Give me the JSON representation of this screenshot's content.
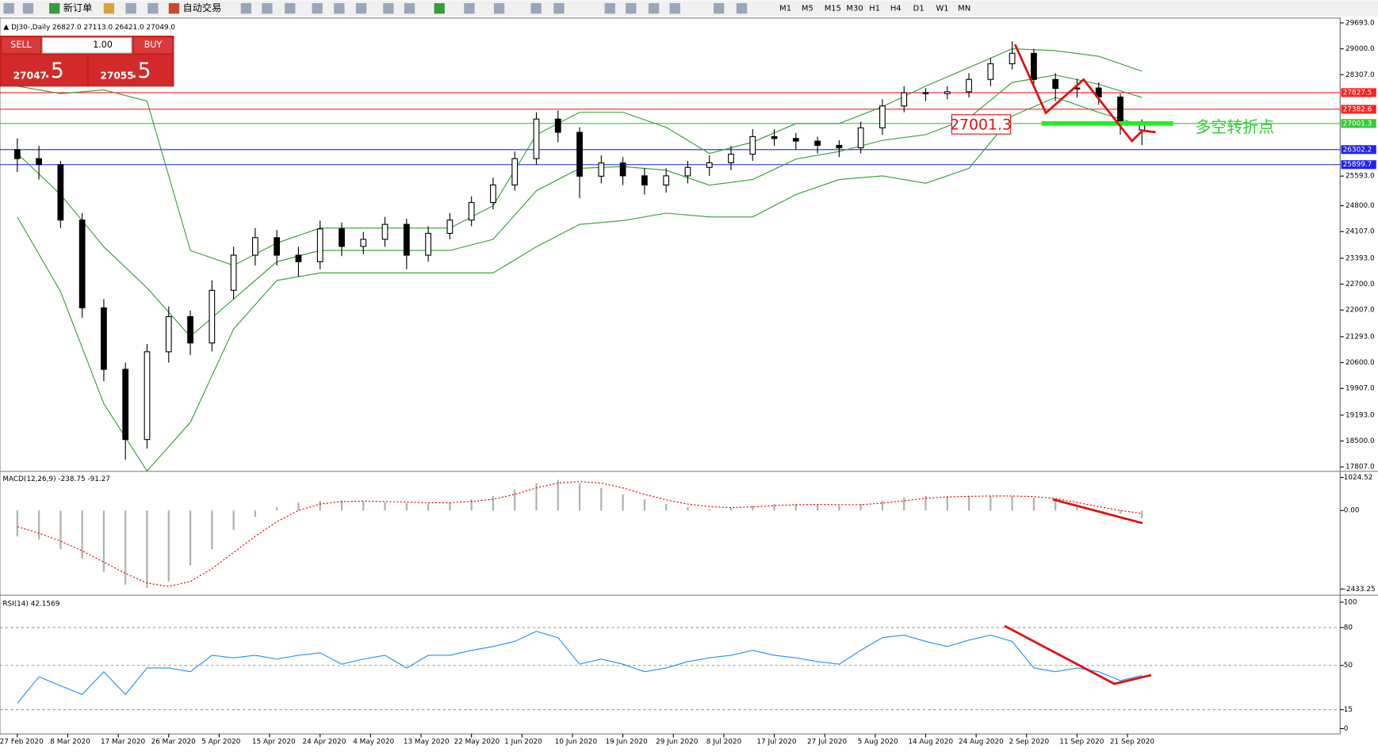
{
  "toolbar": {
    "new_order": "新订单",
    "auto_trading": "自动交易",
    "timeframes": [
      "M1",
      "M5",
      "M15",
      "M30",
      "H1",
      "H4",
      "D1",
      "W1",
      "MN"
    ]
  },
  "trade": {
    "sell": "SELL",
    "buy": "BUY",
    "lots": "1.00",
    "bid_main": "27047",
    "bid_tail": ".5",
    "ask_main": "27055",
    "ask_tail": ".5"
  },
  "chart_data": {
    "type": "candlestick",
    "title": "DJ30-,Daily",
    "ohlc_text": [
      "26827.0",
      "27113.0",
      "26421.0",
      "27049.0"
    ],
    "up_color": "#ffffff",
    "down_color": "#000000",
    "x": [
      0,
      3,
      6,
      9,
      12,
      15,
      18,
      21,
      24,
      27,
      30,
      33,
      36,
      39,
      42,
      45,
      48,
      51,
      54,
      57,
      60,
      63,
      66,
      69,
      72,
      75,
      78,
      81,
      84,
      87,
      90,
      93,
      96,
      99,
      102,
      105,
      108,
      111,
      114,
      117,
      120,
      123,
      126,
      129,
      132,
      135,
      138,
      141,
      144,
      147,
      150,
      153,
      156
    ],
    "open": [
      26300,
      26060,
      25900,
      24415,
      22065,
      20420,
      18540,
      20890,
      21830,
      21125,
      22535,
      23475,
      23945,
      23475,
      23300,
      24180,
      23710,
      23900,
      24300,
      23475,
      24060,
      24415,
      24885,
      25355,
      26060,
      27120,
      26765,
      25590,
      25945,
      25600,
      25355,
      25600,
      25825,
      25950,
      26180,
      26650,
      26600,
      26530,
      26415,
      26350,
      26885,
      27470,
      27825,
      27800,
      27850,
      28180,
      28600,
      28880,
      28180,
      27940,
      27950,
      27710,
      26827
    ],
    "high": [
      26600,
      26400,
      26000,
      24600,
      22300,
      20600,
      21100,
      22100,
      22000,
      22800,
      23700,
      24200,
      24150,
      23700,
      24400,
      24350,
      24100,
      24500,
      24450,
      24250,
      24600,
      25050,
      25550,
      26250,
      27300,
      27350,
      26900,
      26150,
      26100,
      25800,
      25800,
      26000,
      26150,
      26400,
      26850,
      26850,
      26750,
      26650,
      26550,
      27050,
      27650,
      28000,
      27950,
      28000,
      28350,
      28750,
      29200,
      29000,
      28350,
      28200,
      28100,
      27800,
      27113
    ],
    "low": [
      25700,
      25500,
      24200,
      21800,
      20100,
      18000,
      18300,
      20600,
      20800,
      20900,
      22300,
      23200,
      23200,
      22900,
      23100,
      23450,
      23500,
      23700,
      23100,
      23300,
      23900,
      24250,
      24700,
      25200,
      25900,
      26500,
      25000,
      25400,
      25350,
      25100,
      25150,
      25400,
      25600,
      25750,
      26000,
      26400,
      26300,
      26200,
      26100,
      26200,
      26700,
      27300,
      27600,
      27650,
      27700,
      28000,
      28450,
      28000,
      27600,
      27700,
      27500,
      26700,
      26421
    ],
    "close": [
      26060,
      25900,
      24415,
      22065,
      20420,
      18540,
      20890,
      21830,
      21125,
      22535,
      23475,
      23945,
      23475,
      23300,
      24180,
      23710,
      23900,
      24300,
      23475,
      24060,
      24415,
      24885,
      25355,
      26060,
      27120,
      26765,
      25590,
      25945,
      25600,
      25355,
      25600,
      25825,
      25950,
      26180,
      26650,
      26600,
      26530,
      26415,
      26350,
      26885,
      27470,
      27825,
      27800,
      27850,
      28180,
      28600,
      28880,
      28180,
      27940,
      27950,
      27710,
      27000,
      27049
    ],
    "bands": {
      "color": "#2e9e2e",
      "x": [
        0,
        6,
        12,
        18,
        24,
        30,
        36,
        42,
        48,
        54,
        60,
        66,
        72,
        78,
        84,
        90,
        96,
        102,
        108,
        114,
        120,
        126,
        132,
        138,
        144,
        150,
        156
      ],
      "upper": [
        28000,
        27800,
        27900,
        27600,
        23600,
        23200,
        23800,
        24200,
        24200,
        24200,
        24200,
        24800,
        26700,
        27300,
        27300,
        26900,
        26200,
        26500,
        27000,
        27000,
        27450,
        28000,
        28500,
        29000,
        28950,
        28800,
        28400
      ],
      "middle": [
        26200,
        25100,
        23700,
        22600,
        21300,
        22300,
        23300,
        23600,
        23600,
        23600,
        23600,
        23900,
        25200,
        25800,
        25850,
        25750,
        25350,
        25500,
        26050,
        26250,
        26550,
        26700,
        27150,
        28100,
        28300,
        28050,
        27700
      ],
      "lower": [
        24500,
        22500,
        19500,
        17700,
        19000,
        21500,
        22800,
        23000,
        23000,
        23000,
        23000,
        23000,
        23700,
        24300,
        24400,
        24600,
        24500,
        24500,
        25100,
        25500,
        25600,
        25400,
        25800,
        27200,
        27700,
        27300,
        26950
      ]
    },
    "xlim": [
      -2.4,
      183.5
    ],
    "ylim": [
      17713,
      29776
    ],
    "xticks": [
      {
        "value": 0,
        "label": "27 Feb 2020"
      },
      {
        "value": 7,
        "label": "8 Mar 2020"
      },
      {
        "value": 14,
        "label": "17 Mar 2020"
      },
      {
        "value": 21,
        "label": "26 Mar 2020"
      },
      {
        "value": 28,
        "label": "5 Apr 2020"
      },
      {
        "value": 35,
        "label": "15 Apr 2020"
      },
      {
        "value": 42,
        "label": "24 Apr 2020"
      },
      {
        "value": 49,
        "label": "4 May 2020"
      },
      {
        "value": 56,
        "label": "13 May 2020"
      },
      {
        "value": 63,
        "label": "22 May 2020"
      },
      {
        "value": 70,
        "label": "1 Jun 2020"
      },
      {
        "value": 77,
        "label": "10 Jun 2020"
      },
      {
        "value": 84,
        "label": "19 Jun 2020"
      },
      {
        "value": 91,
        "label": "29 Jun 2020"
      },
      {
        "value": 98,
        "label": "8 Jul 2020"
      },
      {
        "value": 105,
        "label": "17 Jul 2020"
      },
      {
        "value": 112,
        "label": "27 Jul 2020"
      },
      {
        "value": 119,
        "label": "5 Aug 2020"
      },
      {
        "value": 126,
        "label": "14 Aug 2020"
      },
      {
        "value": 133,
        "label": "24 Aug 2020"
      },
      {
        "value": 140,
        "label": "2 Sep 2020"
      },
      {
        "value": 147,
        "label": "11 Sep 2020"
      },
      {
        "value": 154,
        "label": "21 Sep 2020"
      }
    ],
    "yticks": [
      {
        "value": 29693,
        "label": "29693.0"
      },
      {
        "value": 29000,
        "label": "29000.0"
      },
      {
        "value": 28307,
        "label": "28307.0"
      },
      {
        "value": 25593,
        "label": "25593.0"
      },
      {
        "value": 24800,
        "label": "24800.0"
      },
      {
        "value": 24107,
        "label": "24107.0"
      },
      {
        "value": 23393,
        "label": "23393.0"
      },
      {
        "value": 22700,
        "label": "22700.0"
      },
      {
        "value": 22007,
        "label": "22007.0"
      },
      {
        "value": 21293,
        "label": "21293.0"
      },
      {
        "value": 20600,
        "label": "20600.0"
      },
      {
        "value": 19907,
        "label": "19907.0"
      },
      {
        "value": 19193,
        "label": "19193.0"
      },
      {
        "value": 18500,
        "label": "18500.0"
      },
      {
        "value": 17807,
        "label": "17807.0"
      }
    ],
    "levels": [
      {
        "value": 27827.5,
        "label": "27827.5",
        "color": "#ff2020"
      },
      {
        "value": 27382.6,
        "label": "27382.6",
        "color": "#ff2020"
      },
      {
        "value": 27001.3,
        "label": "27001.3",
        "color": "#33cc33"
      },
      {
        "value": 26302.2,
        "label": "26302.2",
        "color": "#2020ff"
      },
      {
        "value": 25899.7,
        "label": "25899.7",
        "color": "#2020ff"
      }
    ],
    "annotations": {
      "price_box": "27001.3",
      "pivot": "多空转折点"
    },
    "macd": {
      "title": "MACD(12,26,9) -238.75 -91.27",
      "ylim": [
        -2596,
        1188
      ],
      "yticks": [
        {
          "value": 1024.52,
          "label": "1024.52"
        },
        {
          "value": 0,
          "label": "0.00"
        },
        {
          "value": -2433.25,
          "label": "-2433.25"
        }
      ],
      "histogram": [
        -800,
        -900,
        -1200,
        -1500,
        -1900,
        -2300,
        -2400,
        -2200,
        -1700,
        -1200,
        -600,
        -200,
        100,
        250,
        300,
        300,
        280,
        260,
        230,
        220,
        250,
        350,
        450,
        650,
        850,
        950,
        850,
        700,
        500,
        350,
        200,
        100,
        50,
        80,
        150,
        200,
        200,
        180,
        150,
        200,
        300,
        400,
        450,
        450,
        450,
        450,
        450,
        400,
        300,
        150,
        0,
        -100,
        -239
      ],
      "signal": [
        -500,
        -700,
        -950,
        -1250,
        -1600,
        -1950,
        -2250,
        -2350,
        -2200,
        -1800,
        -1300,
        -800,
        -350,
        0,
        200,
        280,
        290,
        280,
        260,
        240,
        240,
        280,
        350,
        500,
        700,
        850,
        900,
        850,
        700,
        500,
        330,
        200,
        120,
        90,
        110,
        150,
        180,
        190,
        180,
        180,
        230,
        300,
        380,
        420,
        440,
        450,
        450,
        430,
        370,
        250,
        120,
        0,
        -91
      ]
    },
    "rsi": {
      "title": "RSI(14) 42.1569",
      "color": "#1e90ff",
      "ylim": [
        -6.25,
        104.9
      ],
      "yticks": [
        0,
        15,
        50,
        80,
        100
      ],
      "dashed_levels": [
        15,
        50,
        80
      ],
      "values": [
        20,
        41,
        34,
        27,
        45,
        27,
        48,
        48,
        45,
        58,
        56,
        58,
        55,
        58,
        60,
        51,
        55,
        58,
        48,
        58,
        58,
        62,
        65,
        69,
        77,
        72,
        51,
        55,
        51,
        45,
        48,
        53,
        56,
        58,
        62,
        58,
        56,
        53,
        51,
        62,
        72,
        74,
        69,
        65,
        70,
        74,
        69,
        48,
        45,
        48,
        45,
        38,
        42
      ]
    }
  }
}
